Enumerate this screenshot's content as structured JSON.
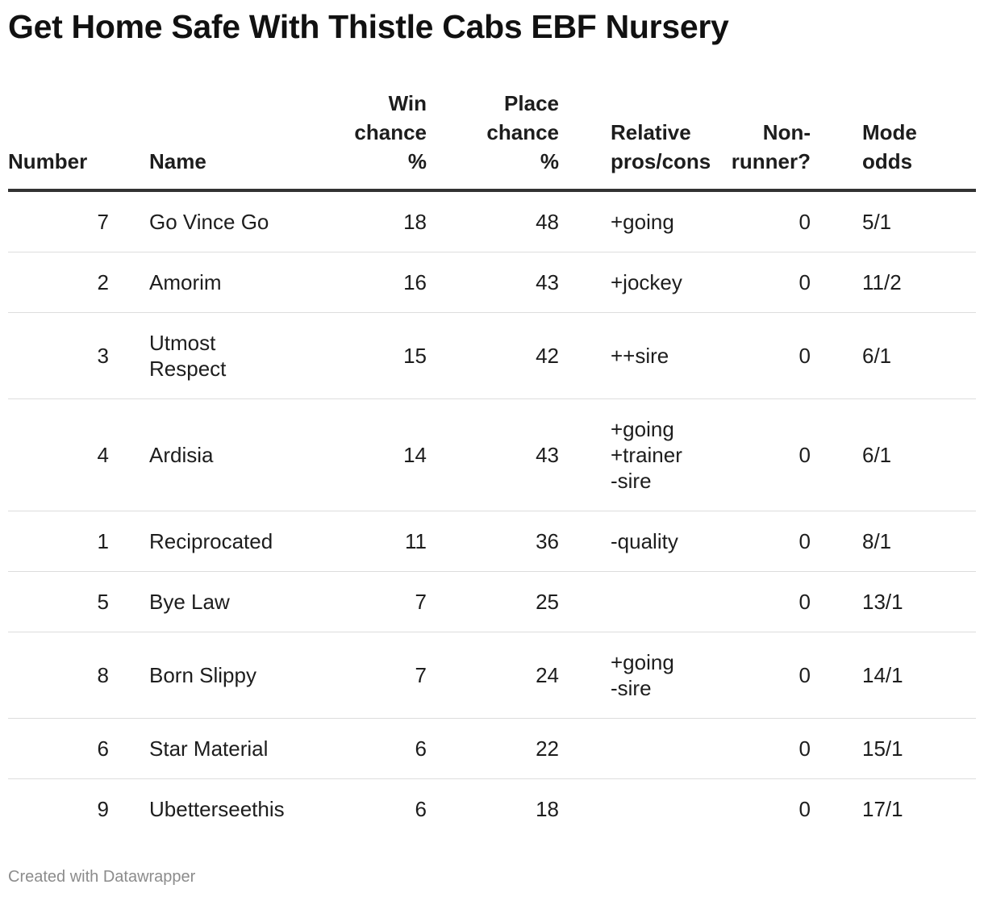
{
  "title": "Get Home Safe With Thistle Cabs EBF Nursery",
  "footer": {
    "credit": "Created with Datawrapper"
  },
  "chart_data": {
    "type": "table",
    "title": "Get Home Safe With Thistle Cabs EBF Nursery",
    "columns": {
      "number": "Number",
      "name": "Name",
      "win_chance": "Win chance %",
      "place_chance": "Place chance %",
      "pros_cons": "Relative pros/cons",
      "non_runner": "Non-runner?",
      "mode_odds": "Mode odds"
    },
    "header_lines": {
      "number": [
        "Number"
      ],
      "name": [
        "Name"
      ],
      "win_chance": [
        "Win",
        "chance",
        "%"
      ],
      "place_chance": [
        "Place",
        "chance",
        "%"
      ],
      "pros_cons": [
        "Relative",
        "pros/cons"
      ],
      "non_runner": [
        "Non-",
        "runner?"
      ],
      "mode_odds": [
        "Mode",
        "odds"
      ]
    },
    "rows": [
      {
        "number": "7",
        "name": "Go Vince Go",
        "win_chance": "18",
        "place_chance": "48",
        "pros_cons": "+going",
        "non_runner": "0",
        "mode_odds": "5/1"
      },
      {
        "number": "2",
        "name": "Amorim",
        "win_chance": "16",
        "place_chance": "43",
        "pros_cons": "+jockey",
        "non_runner": "0",
        "mode_odds": "11/2"
      },
      {
        "number": "3",
        "name": "Utmost\nRespect",
        "win_chance": "15",
        "place_chance": "42",
        "pros_cons": "++sire",
        "non_runner": "0",
        "mode_odds": "6/1"
      },
      {
        "number": "4",
        "name": "Ardisia",
        "win_chance": "14",
        "place_chance": "43",
        "pros_cons": "+going\n+trainer\n-sire",
        "non_runner": "0",
        "mode_odds": "6/1"
      },
      {
        "number": "1",
        "name": "Reciprocated",
        "win_chance": "11",
        "place_chance": "36",
        "pros_cons": "-quality",
        "non_runner": "0",
        "mode_odds": "8/1"
      },
      {
        "number": "5",
        "name": "Bye Law",
        "win_chance": "7",
        "place_chance": "25",
        "pros_cons": "",
        "non_runner": "0",
        "mode_odds": "13/1"
      },
      {
        "number": "8",
        "name": "Born Slippy",
        "win_chance": "7",
        "place_chance": "24",
        "pros_cons": "+going\n-sire",
        "non_runner": "0",
        "mode_odds": "14/1"
      },
      {
        "number": "6",
        "name": "Star Material",
        "win_chance": "6",
        "place_chance": "22",
        "pros_cons": "",
        "non_runner": "0",
        "mode_odds": "15/1"
      },
      {
        "number": "9",
        "name": "Ubetterseethis",
        "win_chance": "6",
        "place_chance": "18",
        "pros_cons": "",
        "non_runner": "0",
        "mode_odds": "17/1"
      }
    ]
  }
}
